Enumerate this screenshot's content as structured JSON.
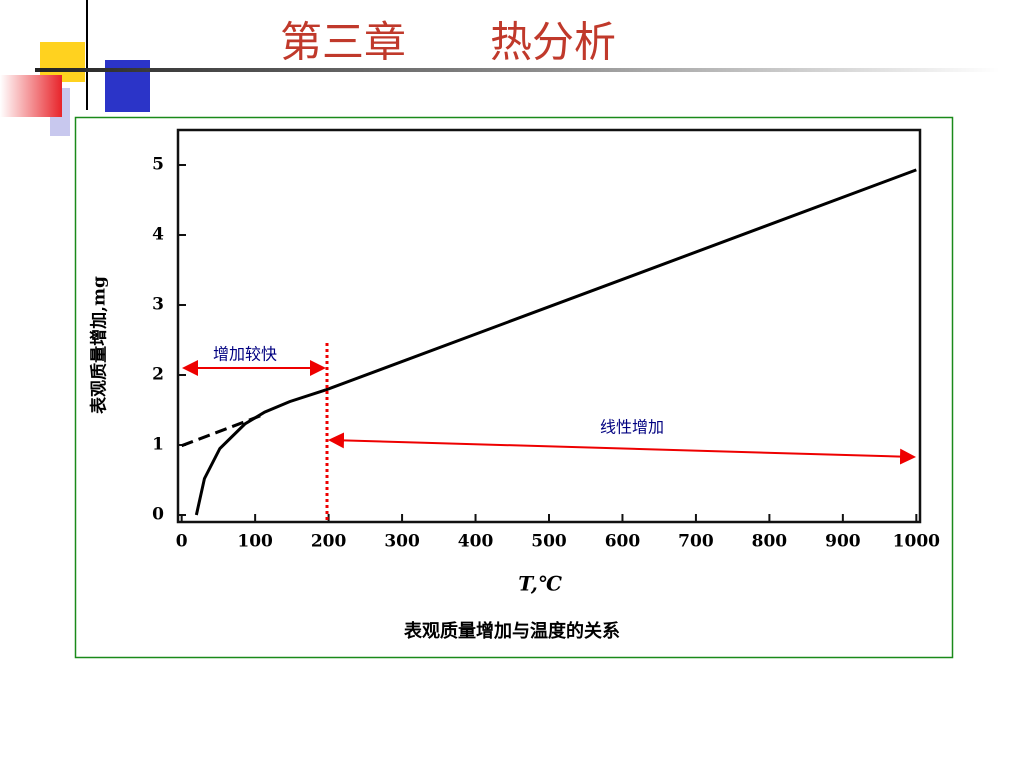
{
  "slide": {
    "title": "第三章　　热分析"
  },
  "chart_data": {
    "type": "line",
    "xlabel": "T,℃",
    "ylabel": "表观质量增加,mg",
    "caption": "表观质量增加与温度的关系",
    "annotations": [
      "增加较快",
      "线性增加"
    ],
    "series": [
      {
        "color": "#000000",
        "dashed": false,
        "x": [
          20,
          31,
          52,
          86,
          113,
          147,
          197,
          1000
        ],
        "values": [
          0,
          0.52,
          0.95,
          1.3,
          1.47,
          1.62,
          1.79,
          4.93
        ]
      },
      {
        "color": "#000000",
        "dashed": true,
        "x": [
          0,
          113
        ],
        "values": [
          0.99,
          1.44
        ]
      }
    ],
    "xlim": [
      -5,
      1005
    ],
    "ylim": [
      -0.1,
      5.5
    ],
    "xticks": [
      0,
      100,
      200,
      300,
      400,
      500,
      600,
      700,
      800,
      900,
      1000
    ],
    "yticks": [
      0,
      1,
      2,
      3,
      4,
      5
    ]
  }
}
